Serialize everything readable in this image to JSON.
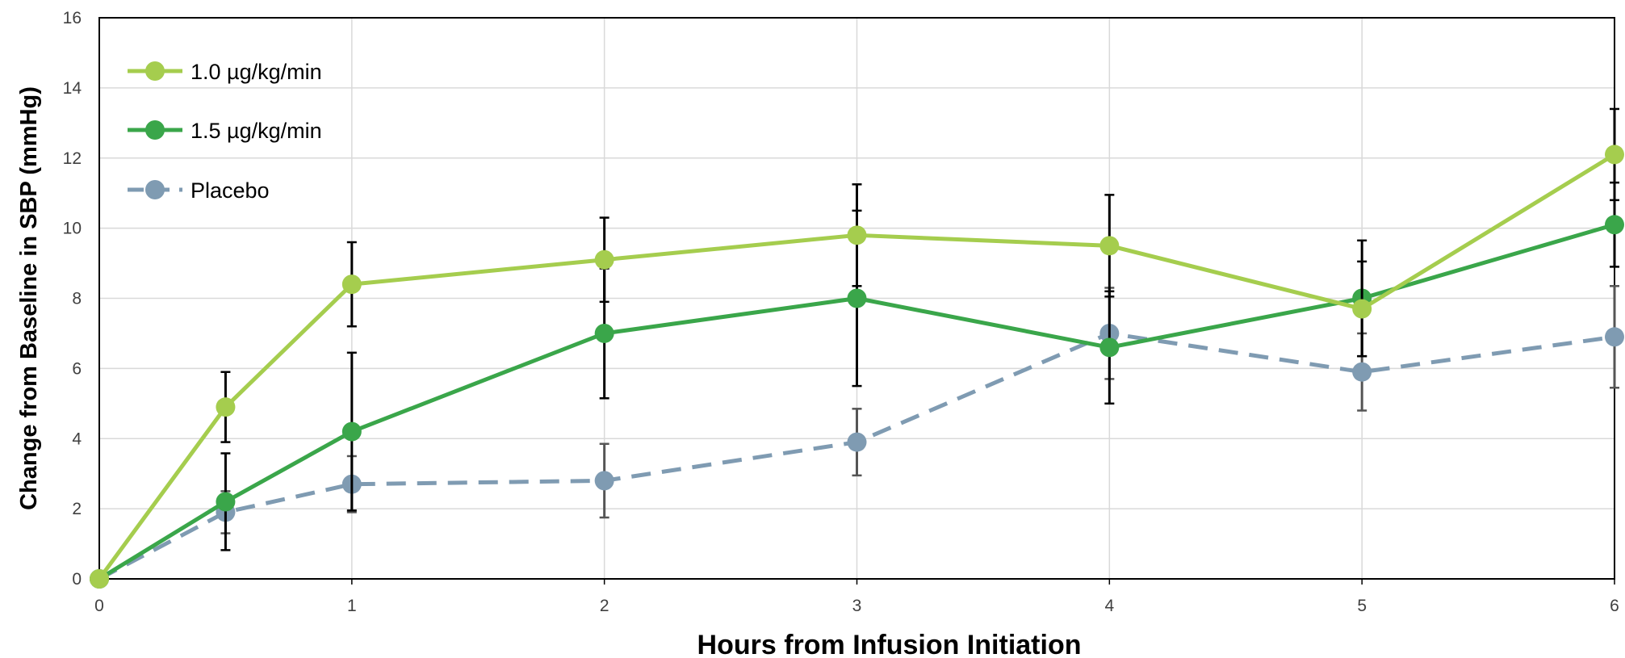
{
  "chart_data": {
    "type": "line",
    "title": "",
    "xlabel": "Hours from Infusion Initiation",
    "ylabel": "Change from Baseline in SBP (mmHg)",
    "xlim": [
      0,
      6
    ],
    "ylim": [
      0,
      16
    ],
    "x_ticks": [
      "0",
      "1",
      "2",
      "3",
      "4",
      "5",
      "6"
    ],
    "y_ticks": [
      "0",
      "2",
      "4",
      "6",
      "8",
      "10",
      "12",
      "14",
      "16"
    ],
    "grid": true,
    "legend_position": "top-left",
    "series": [
      {
        "name": "1.0 µg/kg/min",
        "color": "#a5cd4e",
        "dashed": false,
        "points": [
          {
            "x": 0,
            "y": 0,
            "err": 0
          },
          {
            "x": 0.5,
            "y": 4.9,
            "err": 1.0
          },
          {
            "x": 1,
            "y": 8.4,
            "err": 1.2
          },
          {
            "x": 2,
            "y": 9.1,
            "err": 1.2
          },
          {
            "x": 3,
            "y": 9.8,
            "err": 1.45
          },
          {
            "x": 4,
            "y": 9.5,
            "err": 1.45
          },
          {
            "x": 5,
            "y": 7.7,
            "err": 1.35
          },
          {
            "x": 6,
            "y": 12.1,
            "err": 1.3
          }
        ]
      },
      {
        "name": "1.5 µg/kg/min",
        "color": "#3aa64a",
        "dashed": false,
        "points": [
          {
            "x": 0,
            "y": 0,
            "err": 0
          },
          {
            "x": 0.5,
            "y": 2.2,
            "err": 1.38
          },
          {
            "x": 1,
            "y": 4.2,
            "err": 2.25
          },
          {
            "x": 2,
            "y": 7.0,
            "err": 1.85
          },
          {
            "x": 3,
            "y": 8.0,
            "err": 2.5
          },
          {
            "x": 4,
            "y": 6.6,
            "err": 1.6
          },
          {
            "x": 5,
            "y": 8.0,
            "err": 1.65
          },
          {
            "x": 6,
            "y": 10.1,
            "err": 1.2
          }
        ]
      },
      {
        "name": "Placebo",
        "color": "#7f9bb2",
        "dashed": true,
        "points": [
          {
            "x": 0,
            "y": 0,
            "err": 0
          },
          {
            "x": 0.5,
            "y": 1.9,
            "err": 0.6
          },
          {
            "x": 1,
            "y": 2.7,
            "err": 0.8
          },
          {
            "x": 2,
            "y": 2.8,
            "err": 1.05
          },
          {
            "x": 3,
            "y": 3.9,
            "err": 0.95
          },
          {
            "x": 4,
            "y": 7.0,
            "err": 1.3
          },
          {
            "x": 5,
            "y": 5.9,
            "err": 1.1
          },
          {
            "x": 6,
            "y": 6.9,
            "err": 1.45
          }
        ]
      }
    ]
  }
}
